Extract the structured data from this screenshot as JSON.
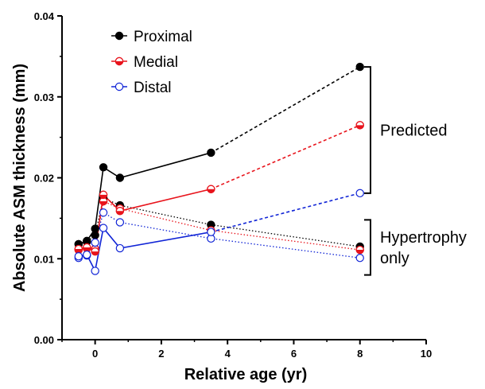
{
  "chart_data": {
    "type": "line",
    "xlabel": "Relative age (yr)",
    "ylabel": "Absolute ASM thickness (mm)",
    "xlim": [
      -1,
      10
    ],
    "ylim": [
      0,
      0.04
    ],
    "xticks": [
      0,
      2,
      4,
      6,
      8,
      10
    ],
    "xtick_labels": [
      "0",
      "2",
      "4",
      "6",
      "8",
      "10"
    ],
    "yticks": [
      0,
      0.01,
      0.02,
      0.03,
      0.04
    ],
    "ytick_labels": [
      "0.00",
      "0.01",
      "0.02",
      "0.03",
      "0.04"
    ],
    "grid": false,
    "legend": {
      "position": "top-left"
    },
    "series": [
      {
        "name": "Proximal",
        "color": "#000000",
        "marker": "filled-circle",
        "measured": {
          "x": [
            -0.5,
            -0.25,
            0,
            0.25,
            0.75,
            3.5
          ],
          "y": [
            0.0118,
            0.0122,
            0.0137,
            0.0213,
            0.02,
            0.0231
          ]
        },
        "predicted": {
          "x": [
            3.5,
            8
          ],
          "y": [
            0.0231,
            0.0337
          ]
        },
        "hypertrophy_only": {
          "x": [
            -0.5,
            -0.25,
            0,
            0.25,
            0.75,
            3.5,
            8
          ],
          "y": [
            0.0118,
            0.0121,
            0.0129,
            0.0175,
            0.0166,
            0.0142,
            0.0115
          ]
        }
      },
      {
        "name": "Medial",
        "color": "#e8141c",
        "marker": "half-filled-circle",
        "measured": {
          "x": [
            -0.5,
            -0.25,
            0,
            0.25,
            0.75,
            3.5
          ],
          "y": [
            0.0112,
            0.0114,
            0.0109,
            0.0179,
            0.0159,
            0.0186
          ]
        },
        "predicted": {
          "x": [
            3.5,
            8
          ],
          "y": [
            0.0186,
            0.0265
          ]
        },
        "hypertrophy_only": {
          "x": [
            -0.5,
            -0.25,
            0,
            0.25,
            0.75,
            3.5,
            8
          ],
          "y": [
            0.0111,
            0.0113,
            0.0112,
            0.0171,
            0.0162,
            0.0135,
            0.0111
          ]
        }
      },
      {
        "name": "Distal",
        "color": "#1024d6",
        "marker": "open-circle",
        "measured": {
          "x": [
            -0.5,
            -0.25,
            0,
            0.25,
            0.75,
            3.5
          ],
          "y": [
            0.0103,
            0.0105,
            0.0085,
            0.0138,
            0.0113,
            0.0133
          ]
        },
        "predicted": {
          "x": [
            3.5,
            8
          ],
          "y": [
            0.0133,
            0.0181
          ]
        },
        "hypertrophy_only": {
          "x": [
            -0.5,
            -0.25,
            0,
            0.25,
            0.75,
            3.5,
            8
          ],
          "y": [
            0.0101,
            0.0104,
            0.012,
            0.0157,
            0.0145,
            0.0125,
            0.0101
          ]
        }
      }
    ],
    "annotations": [
      {
        "text": "Predicted",
        "bracket_y": [
          0.0337,
          0.0181
        ]
      },
      {
        "text_lines": [
          "Hypertrophy",
          "only"
        ],
        "bracket_y": [
          0.0148,
          0.008
        ]
      }
    ]
  }
}
